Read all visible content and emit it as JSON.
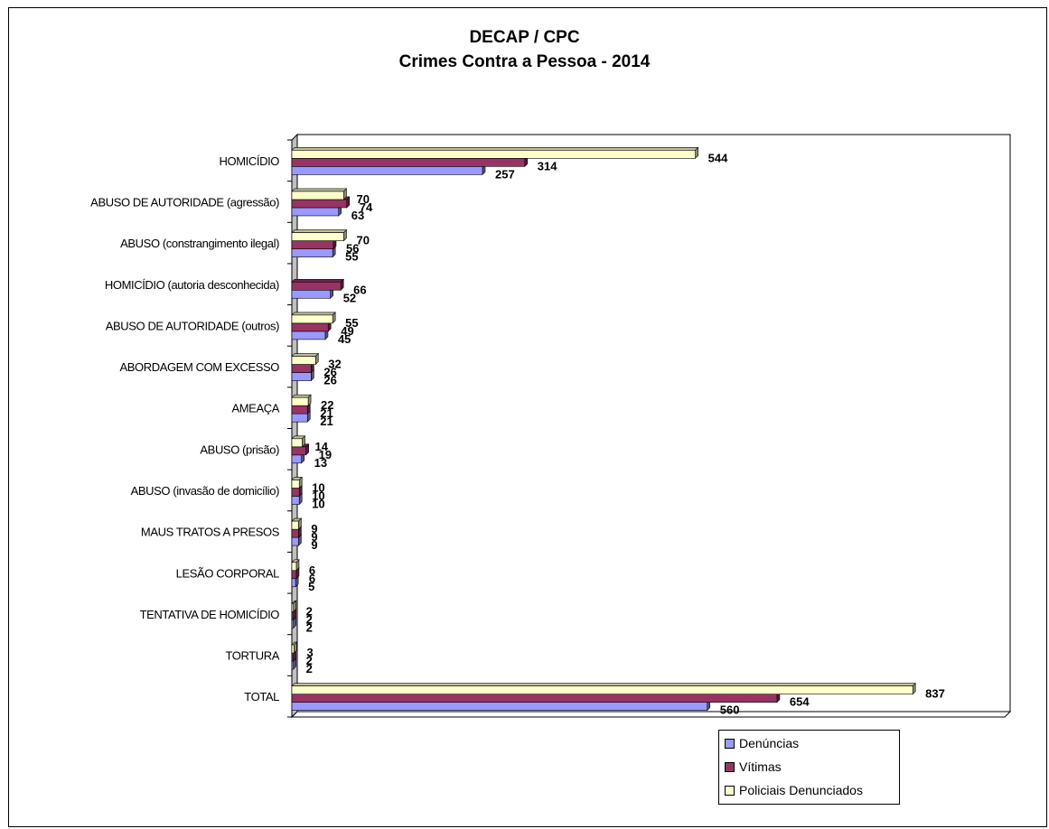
{
  "colors": {
    "denuncias": "#9999FF",
    "vitimas": "#993366",
    "policiais": "#FFFFCC",
    "frame": "#000000",
    "wall": "#C0C0C0"
  },
  "chart_data": {
    "type": "bar",
    "orientation": "horizontal",
    "title_line1": "DECAP / CPC",
    "title_line2": "Crimes Contra a Pessoa - 2014",
    "categories": [
      "HOMICÍDIO",
      "ABUSO DE AUTORIDADE (agressão)",
      "ABUSO (constrangimento ilegal)",
      "HOMICÍDIO (autoria desconhecida)",
      "ABUSO DE AUTORIDADE (outros)",
      "ABORDAGEM COM EXCESSO",
      "AMEAÇA",
      "ABUSO (prisão)",
      "ABUSO (invasão de domicílio)",
      "MAUS TRATOS A PRESOS",
      "LESÃO CORPORAL",
      "TENTATIVA DE HOMICÍDIO",
      "TORTURA",
      "TOTAL"
    ],
    "series": [
      {
        "name": "Denúncias",
        "values": [
          257,
          63,
          55,
          52,
          45,
          26,
          21,
          13,
          10,
          9,
          5,
          2,
          2,
          560
        ]
      },
      {
        "name": "Vítimas",
        "values": [
          314,
          74,
          56,
          66,
          49,
          26,
          21,
          19,
          10,
          9,
          6,
          2,
          2,
          654
        ]
      },
      {
        "name": "Policiais Denunciados",
        "values": [
          544,
          70,
          70,
          null,
          55,
          32,
          22,
          14,
          10,
          9,
          6,
          2,
          3,
          837
        ]
      }
    ],
    "xlim": [
      0,
      1000
    ],
    "grid": false,
    "legend_position": "bottom-right"
  }
}
